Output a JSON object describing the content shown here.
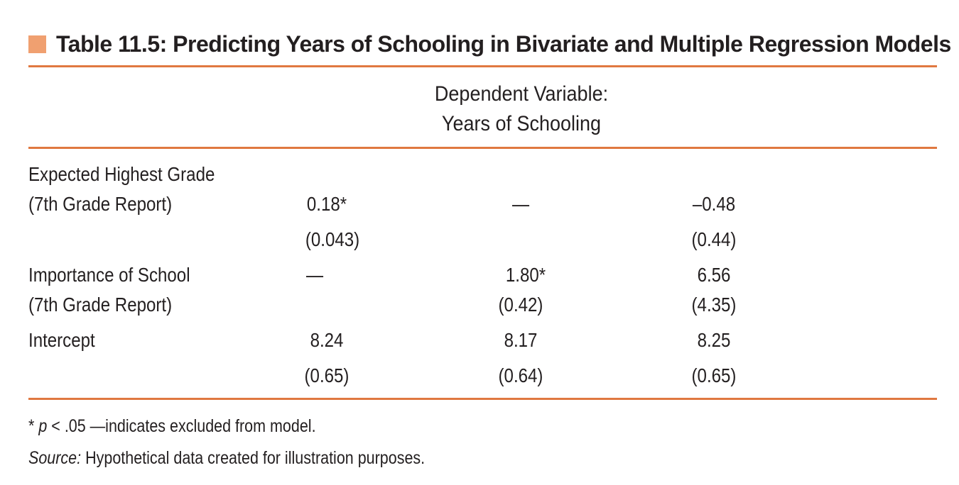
{
  "title": "Table 11.5: Predicting Years of Schooling in Bivariate and Multiple Regression Models",
  "colors": {
    "accent_square": "#f0a070",
    "rule": "#e07840",
    "text": "#231f20"
  },
  "header": {
    "line1": "Dependent Variable:",
    "line2": "Years of Schooling"
  },
  "rows": [
    {
      "label_line1": "Expected Highest Grade",
      "label_line2": " (7th Grade Report)",
      "model1": "0.18*",
      "model1_se": "(0.043)",
      "model2": "—",
      "model2_se": "",
      "model3": "–0.48",
      "model3_se": "(0.44)"
    },
    {
      "label_line1": "Importance of School",
      "label_line2": "(7th Grade Report)",
      "model1": "—",
      "model1_se": "",
      "model2": "1.80*",
      "model2_se": "(0.42)",
      "model3": "6.56",
      "model3_se": "(4.35)"
    },
    {
      "label_line1": "Intercept",
      "label_line2": "",
      "model1": "8.24",
      "model1_se": "(0.65)",
      "model2": "8.17",
      "model2_se": "(0.64)",
      "model3": "8.25",
      "model3_se": "(0.65)"
    }
  ],
  "notes": {
    "sig_star": "*",
    "sig_p": "p",
    "sig_rest": " < .05 —indicates excluded from model.",
    "source_label": "Source:",
    "source_text": " Hypothetical data created for illustration purposes."
  }
}
